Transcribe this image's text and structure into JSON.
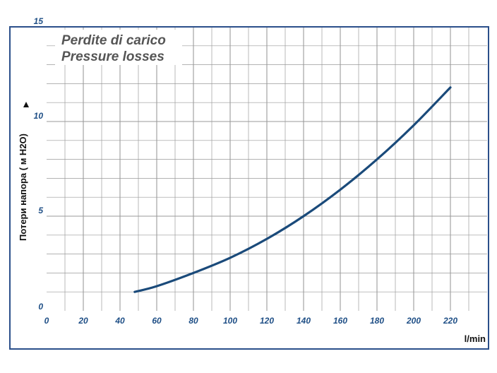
{
  "chart_data": {
    "type": "line",
    "title": "Perdite di carico",
    "subtitle": "Pressure losses",
    "xlabel": "l/min",
    "ylabel": "Потери напора ( м H2O)",
    "xlim": [
      0,
      240
    ],
    "ylim": [
      0,
      15
    ],
    "x_ticks": [
      "0",
      "20",
      "40",
      "60",
      "80",
      "100",
      "120",
      "140",
      "160",
      "180",
      "200",
      "220"
    ],
    "y_ticks": [
      "0",
      "5",
      "10",
      "15"
    ],
    "grid": true,
    "colors": {
      "line": "#1a4a7a",
      "frame": "#2b4f8a",
      "grid": "#9a9a9a",
      "ticks": "#1f4f86"
    },
    "series": [
      {
        "x": [
          48,
          60,
          80,
          100,
          120,
          140,
          160,
          180,
          200,
          220
        ],
        "y": [
          1.0,
          1.3,
          2.0,
          2.8,
          3.8,
          5.0,
          6.4,
          8.0,
          9.8,
          11.8
        ]
      }
    ]
  }
}
